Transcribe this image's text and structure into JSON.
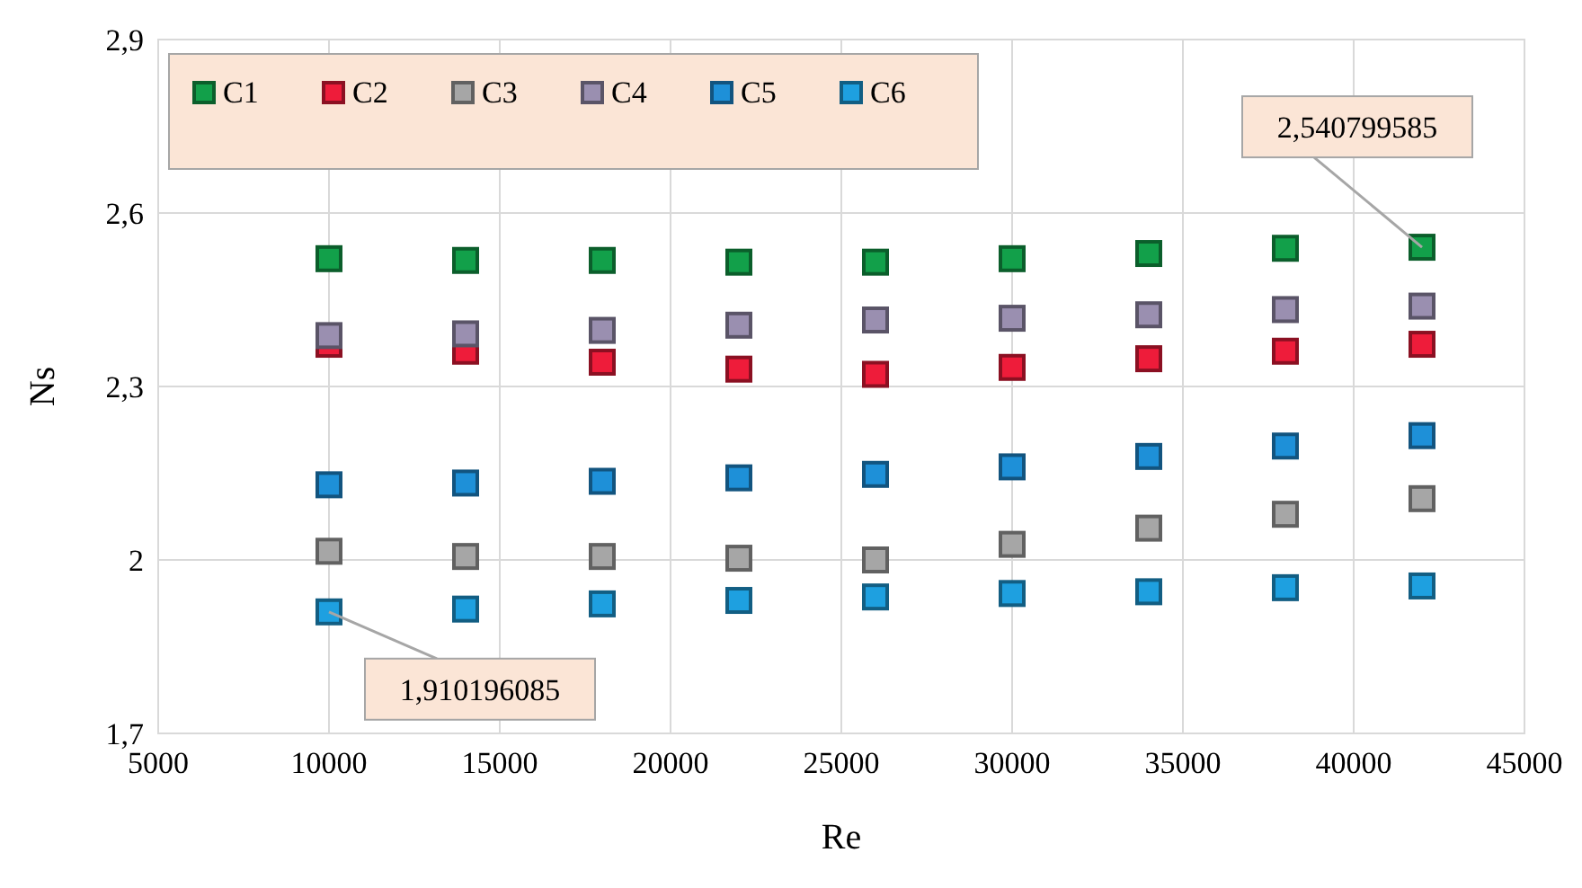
{
  "chart_data": {
    "type": "scatter",
    "xlabel": "Re",
    "ylabel": "Ns",
    "marker": "square",
    "grid": true,
    "legend": "top left",
    "x": [
      10000,
      14000,
      18000,
      22000,
      26000,
      30000,
      34000,
      38000,
      42000
    ],
    "xlim": [
      5000,
      45000
    ],
    "xticks": [
      5000,
      10000,
      15000,
      20000,
      25000,
      30000,
      35000,
      40000,
      45000
    ],
    "ylim": [
      1.7,
      2.9
    ],
    "yticks": [
      {
        "value": 1.7,
        "label": "1,7"
      },
      {
        "value": 2,
        "label": "2"
      },
      {
        "value": 2.3,
        "label": "2,3"
      },
      {
        "value": 2.6,
        "label": "2,6"
      },
      {
        "value": 2.9,
        "label": "2,9"
      }
    ],
    "series": [
      {
        "name": "C1",
        "color": "#12a04a",
        "values": [
          2.521,
          2.518,
          2.518,
          2.515,
          2.515,
          2.521,
          2.53,
          2.539,
          2.540799585
        ]
      },
      {
        "name": "C2",
        "color": "#ee1c3a",
        "values": [
          2.373,
          2.361,
          2.342,
          2.33,
          2.321,
          2.333,
          2.348,
          2.361,
          2.373
        ]
      },
      {
        "name": "C3",
        "color": "#a6a6a6",
        "values": [
          2.015,
          2.006,
          2.006,
          2.003,
          2,
          2.027,
          2.055,
          2.079,
          2.106
        ]
      },
      {
        "name": "C4",
        "color": "#9a8fb0",
        "values": [
          2.388,
          2.391,
          2.397,
          2.406,
          2.415,
          2.418,
          2.424,
          2.433,
          2.439
        ]
      },
      {
        "name": "C5",
        "color": "#1e90d8",
        "values": [
          2.13,
          2.133,
          2.136,
          2.142,
          2.148,
          2.161,
          2.179,
          2.197,
          2.215
        ]
      },
      {
        "name": "C6",
        "color": "#1ea0e0",
        "values": [
          1.910196085,
          1.915,
          1.924,
          1.93,
          1.936,
          1.942,
          1.945,
          1.952,
          1.955
        ]
      }
    ],
    "annotations": [
      {
        "text": "2,540799585",
        "x": 42000,
        "y": 2.540799585
      },
      {
        "text": "1,910196085",
        "x": 10000,
        "y": 1.910196085
      }
    ]
  }
}
